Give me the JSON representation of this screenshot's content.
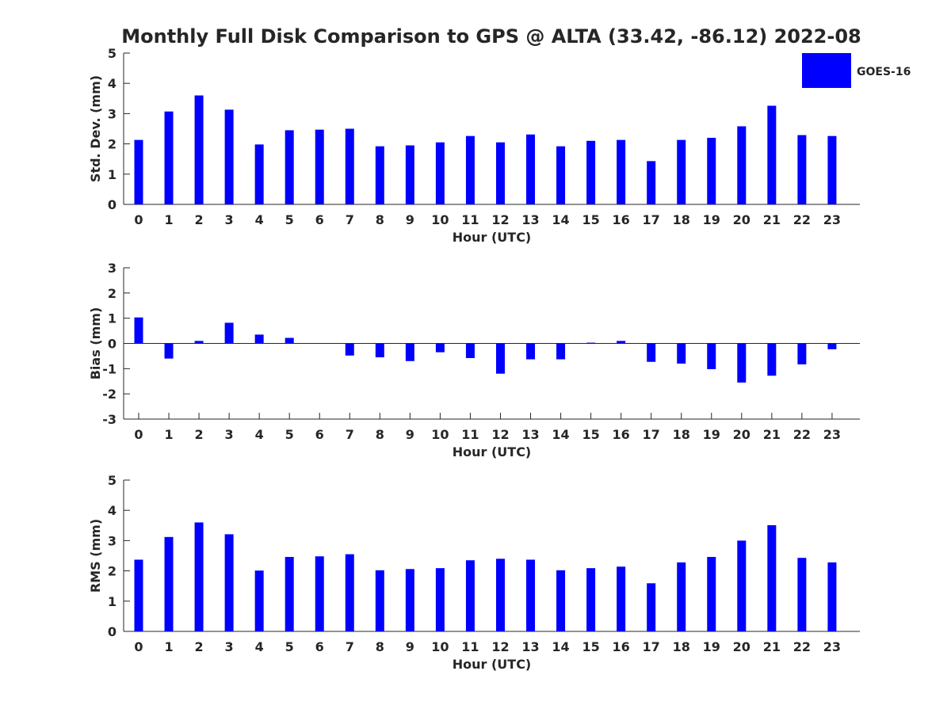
{
  "title": "Monthly Full Disk Comparison to GPS @ ALTA (33.42, -86.12) 2022-08",
  "legend": {
    "label": "GOES-16",
    "color": "#0000ff"
  },
  "bar_color": "#0000ff",
  "chart_data": [
    {
      "type": "bar",
      "name": "std-dev",
      "title": "",
      "xlabel": "Hour (UTC)",
      "ylabel": "Std. Dev. (mm)",
      "ylim": [
        0,
        5
      ],
      "yticks": [
        0,
        1,
        2,
        3,
        4,
        5
      ],
      "categories": [
        "0",
        "1",
        "2",
        "3",
        "4",
        "5",
        "6",
        "7",
        "8",
        "9",
        "10",
        "11",
        "12",
        "13",
        "14",
        "15",
        "16",
        "17",
        "18",
        "19",
        "20",
        "21",
        "22",
        "23"
      ],
      "series": [
        {
          "name": "GOES-16",
          "values": [
            2.13,
            3.07,
            3.6,
            3.13,
            1.98,
            2.45,
            2.47,
            2.5,
            1.92,
            1.95,
            2.05,
            2.26,
            2.05,
            2.31,
            1.92,
            2.1,
            2.13,
            1.43,
            2.13,
            2.2,
            2.58,
            3.26,
            2.29,
            2.26
          ]
        }
      ]
    },
    {
      "type": "bar",
      "name": "bias",
      "title": "",
      "xlabel": "Hour (UTC)",
      "ylabel": "Bias (mm)",
      "ylim": [
        -3,
        3
      ],
      "yticks": [
        -3,
        -2,
        -1,
        0,
        1,
        2,
        3
      ],
      "categories": [
        "0",
        "1",
        "2",
        "3",
        "4",
        "5",
        "6",
        "7",
        "8",
        "9",
        "10",
        "11",
        "12",
        "13",
        "14",
        "15",
        "16",
        "17",
        "18",
        "19",
        "20",
        "21",
        "22",
        "23"
      ],
      "series": [
        {
          "name": "GOES-16",
          "values": [
            1.03,
            -0.6,
            0.1,
            0.82,
            0.35,
            0.22,
            0.0,
            -0.48,
            -0.55,
            -0.7,
            -0.35,
            -0.58,
            -1.2,
            -0.63,
            -0.63,
            0.03,
            0.1,
            -0.73,
            -0.8,
            -1.02,
            -1.55,
            -1.28,
            -0.83,
            -0.23
          ]
        }
      ]
    },
    {
      "type": "bar",
      "name": "rms",
      "title": "",
      "xlabel": "Hour (UTC)",
      "ylabel": "RMS (mm)",
      "ylim": [
        0,
        5
      ],
      "yticks": [
        0,
        1,
        2,
        3,
        4,
        5
      ],
      "categories": [
        "0",
        "1",
        "2",
        "3",
        "4",
        "5",
        "6",
        "7",
        "8",
        "9",
        "10",
        "11",
        "12",
        "13",
        "14",
        "15",
        "16",
        "17",
        "18",
        "19",
        "20",
        "21",
        "22",
        "23"
      ],
      "series": [
        {
          "name": "GOES-16",
          "values": [
            2.37,
            3.12,
            3.6,
            3.21,
            2.01,
            2.46,
            2.48,
            2.55,
            2.02,
            2.06,
            2.09,
            2.35,
            2.4,
            2.37,
            2.02,
            2.09,
            2.14,
            1.59,
            2.28,
            2.46,
            3.0,
            3.51,
            2.43,
            2.28
          ]
        }
      ]
    }
  ]
}
